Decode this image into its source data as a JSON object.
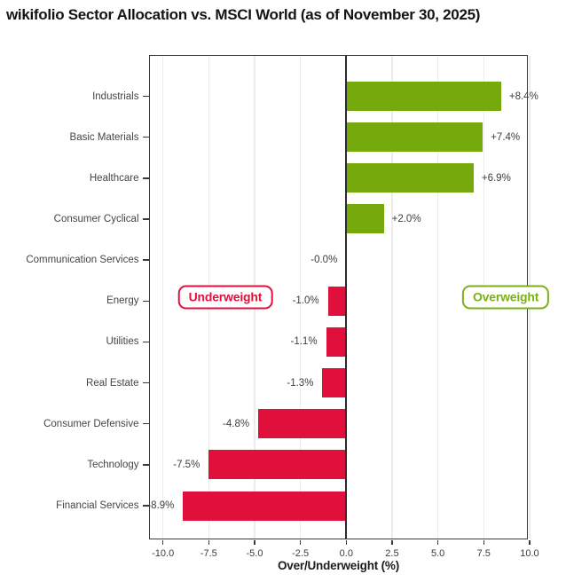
{
  "title": "wikifolio Sector Allocation vs. MSCI World (as of November 30, 2025)",
  "chart_data": {
    "type": "bar",
    "orientation": "horizontal",
    "title": "wikifolio Sector Allocation vs. MSCI World (as of November 30, 2025)",
    "xlabel": "Over/Underweight (%)",
    "ylabel": "",
    "categories": [
      "Industrials",
      "Basic Materials",
      "Healthcare",
      "Consumer Cyclical",
      "Communication Services",
      "Energy",
      "Utilities",
      "Real Estate",
      "Consumer Defensive",
      "Technology",
      "Financial Services"
    ],
    "values": [
      8.4,
      7.4,
      6.9,
      2.0,
      -0.0,
      -1.0,
      -1.1,
      -1.3,
      -4.8,
      -7.5,
      -8.9
    ],
    "bar_labels": [
      "+8.4%",
      "+7.4%",
      "+6.9%",
      "+2.0%",
      "-0.0%",
      "-1.0%",
      "-1.1%",
      "-1.3%",
      "-4.8%",
      "-7.5%",
      "-8.9%"
    ],
    "xticks": [
      -10.0,
      -7.5,
      -5.0,
      -2.5,
      0.0,
      2.5,
      5.0,
      7.5,
      10.0
    ],
    "xtick_labels": [
      "-10.0",
      "-7.5",
      "-5.0",
      "-2.5",
      "0.0",
      "2.5",
      "5.0",
      "7.5",
      "10.0"
    ],
    "xlim": [
      -10.7,
      10.0
    ],
    "grid": true,
    "legend_position": "none",
    "colors": {
      "positive": "#76a90c",
      "negative": "#e0103c",
      "gridline": "#ececec",
      "zero_line": "#2b2b2b",
      "badge_green": "#7ab016",
      "badge_red": "#e0103c"
    },
    "annotations": [
      {
        "text": "Underweight",
        "x": -6.6,
        "color": "#e0103c"
      },
      {
        "text": "Overweight",
        "x": 8.7,
        "color": "#7ab016"
      }
    ]
  }
}
